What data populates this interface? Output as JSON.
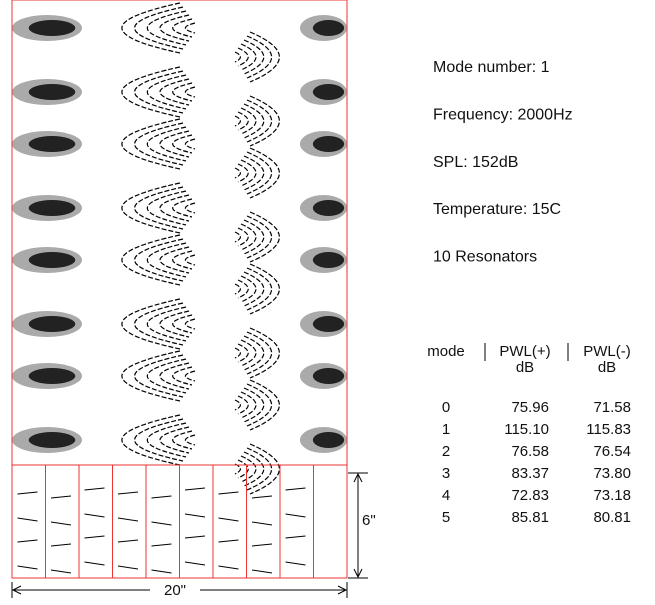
{
  "info": [
    "Mode number: 1",
    "Frequency: 2000Hz",
    "SPL: 152dB",
    "Temperature: 15C",
    "10 Resonators"
  ],
  "table": {
    "columns": [
      "mode",
      "PWL(+)",
      "PWL(-)"
    ],
    "units": [
      "dB",
      "dB"
    ],
    "rows": [
      [
        "0",
        "75.96",
        "71.58"
      ],
      [
        "1",
        "115.10",
        "115.83"
      ],
      [
        "2",
        "76.58",
        "76.54"
      ],
      [
        "3",
        "83.37",
        "73.80"
      ],
      [
        "4",
        "72.83",
        "73.18"
      ],
      [
        "5",
        "85.81",
        "80.81"
      ]
    ]
  },
  "dimensions": {
    "height": "6\"",
    "width": "20\""
  }
}
